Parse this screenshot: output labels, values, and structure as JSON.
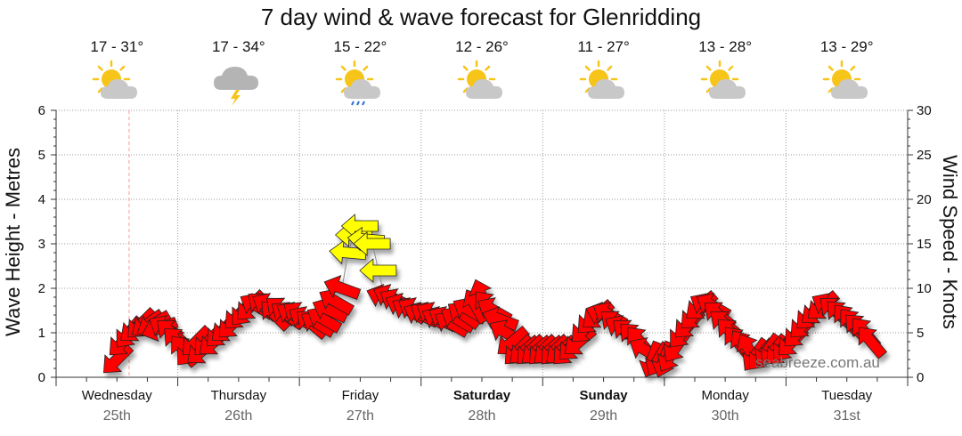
{
  "title": "7 day wind & wave forecast for Glenridding",
  "watermark": "seabreeze.com.au",
  "days": [
    {
      "name": "Wednesday",
      "date": "25th",
      "bold": false,
      "temp": "17 - 31°",
      "icon": "partly-cloudy"
    },
    {
      "name": "Thursday",
      "date": "26th",
      "bold": false,
      "temp": "17 - 34°",
      "icon": "thunderstorm"
    },
    {
      "name": "Friday",
      "date": "27th",
      "bold": false,
      "temp": "15 - 22°",
      "icon": "partly-cloudy-rain"
    },
    {
      "name": "Saturday",
      "date": "28th",
      "bold": true,
      "temp": "12 - 26°",
      "icon": "partly-cloudy"
    },
    {
      "name": "Sunday",
      "date": "29th",
      "bold": true,
      "temp": "11 - 27°",
      "icon": "partly-cloudy"
    },
    {
      "name": "Monday",
      "date": "30th",
      "bold": false,
      "temp": "13 - 28°",
      "icon": "partly-cloudy"
    },
    {
      "name": "Tuesday",
      "date": "31st",
      "bold": false,
      "temp": "13 - 29°",
      "icon": "partly-cloudy"
    }
  ],
  "chart_data": {
    "type": "line",
    "title": "7 day wind & wave forecast for Glenridding",
    "ylabel": "Wave Height - Metres",
    "y2label": "Wind Speed - Knots",
    "ylim": [
      0,
      6
    ],
    "y2lim": [
      0,
      30
    ],
    "yticks": [
      "0",
      "1",
      "2",
      "3",
      "4",
      "5",
      "6"
    ],
    "y2ticks": [
      "0",
      "5",
      "10",
      "15",
      "20",
      "25",
      "30"
    ],
    "grid": true,
    "colors": {
      "strong_wind": "#ff0000",
      "light_wind": "#ffff00",
      "outline": "#222222",
      "now_line": "#ff9999"
    },
    "now_day": 0.6,
    "series": [
      {
        "type": "wind",
        "points": [
          {
            "d": 0.5,
            "kt": 2,
            "dir": 225
          },
          {
            "d": 0.55,
            "kt": 4,
            "dir": 225
          },
          {
            "d": 0.6,
            "kt": 5,
            "dir": 220
          },
          {
            "d": 0.65,
            "kt": 5.5,
            "dir": 230
          },
          {
            "d": 0.7,
            "kt": 6,
            "dir": 225
          },
          {
            "d": 0.75,
            "kt": 6,
            "dir": 235
          },
          {
            "d": 0.8,
            "kt": 6,
            "dir": 240
          },
          {
            "d": 0.85,
            "kt": 5.5,
            "dir": 250
          },
          {
            "d": 0.9,
            "kt": 5.5,
            "dir": 300
          },
          {
            "d": 0.95,
            "kt": 5,
            "dir": 310
          },
          {
            "d": 1.0,
            "kt": 4,
            "dir": 315
          },
          {
            "d": 1.05,
            "kt": 3,
            "dir": 320
          },
          {
            "d": 1.1,
            "kt": 3,
            "dir": 220
          },
          {
            "d": 1.15,
            "kt": 4,
            "dir": 225
          },
          {
            "d": 1.2,
            "kt": 3,
            "dir": 230
          },
          {
            "d": 1.25,
            "kt": 4,
            "dir": 225
          },
          {
            "d": 1.3,
            "kt": 4,
            "dir": 230
          },
          {
            "d": 1.35,
            "kt": 5,
            "dir": 225
          },
          {
            "d": 1.4,
            "kt": 5.5,
            "dir": 230
          },
          {
            "d": 1.45,
            "kt": 6,
            "dir": 225
          },
          {
            "d": 1.5,
            "kt": 7,
            "dir": 225
          },
          {
            "d": 1.55,
            "kt": 7.5,
            "dir": 220
          },
          {
            "d": 1.6,
            "kt": 8,
            "dir": 225
          },
          {
            "d": 1.65,
            "kt": 8,
            "dir": 300
          },
          {
            "d": 1.7,
            "kt": 8,
            "dir": 310
          },
          {
            "d": 1.75,
            "kt": 8,
            "dir": 300
          },
          {
            "d": 1.8,
            "kt": 7,
            "dir": 315
          },
          {
            "d": 1.85,
            "kt": 7.5,
            "dir": 310
          },
          {
            "d": 1.9,
            "kt": 7,
            "dir": 305
          },
          {
            "d": 1.95,
            "kt": 7,
            "dir": 300
          },
          {
            "d": 2.0,
            "kt": 7,
            "dir": 305
          },
          {
            "d": 2.05,
            "kt": 6.5,
            "dir": 300
          },
          {
            "d": 2.1,
            "kt": 6,
            "dir": 310
          },
          {
            "d": 2.15,
            "kt": 6,
            "dir": 300
          },
          {
            "d": 2.2,
            "kt": 6.5,
            "dir": 300
          },
          {
            "d": 2.25,
            "kt": 7.5,
            "dir": 295
          },
          {
            "d": 2.3,
            "kt": 8.5,
            "dir": 300
          },
          {
            "d": 2.35,
            "kt": 10,
            "dir": 290
          },
          {
            "d": 2.4,
            "kt": 14,
            "dir": 275
          },
          {
            "d": 2.45,
            "kt": 16,
            "dir": 270
          },
          {
            "d": 2.5,
            "kt": 17,
            "dir": 270
          },
          {
            "d": 2.55,
            "kt": 15.5,
            "dir": 275
          },
          {
            "d": 2.6,
            "kt": 15,
            "dir": 270
          },
          {
            "d": 2.65,
            "kt": 12,
            "dir": 270
          },
          {
            "d": 2.7,
            "kt": 9,
            "dir": 290
          },
          {
            "d": 2.75,
            "kt": 9,
            "dir": 295
          },
          {
            "d": 2.8,
            "kt": 8.5,
            "dir": 300
          },
          {
            "d": 2.85,
            "kt": 8,
            "dir": 295
          },
          {
            "d": 2.9,
            "kt": 7.5,
            "dir": 300
          },
          {
            "d": 2.95,
            "kt": 7.5,
            "dir": 300
          },
          {
            "d": 3.0,
            "kt": 7,
            "dir": 295
          },
          {
            "d": 3.05,
            "kt": 7,
            "dir": 300
          },
          {
            "d": 3.1,
            "kt": 7,
            "dir": 300
          },
          {
            "d": 3.15,
            "kt": 6.5,
            "dir": 295
          },
          {
            "d": 3.2,
            "kt": 6.5,
            "dir": 300
          },
          {
            "d": 3.25,
            "kt": 6,
            "dir": 300
          },
          {
            "d": 3.3,
            "kt": 6.5,
            "dir": 300
          },
          {
            "d": 3.35,
            "kt": 7,
            "dir": 305
          },
          {
            "d": 3.4,
            "kt": 7.5,
            "dir": 300
          },
          {
            "d": 3.45,
            "kt": 8,
            "dir": 330
          },
          {
            "d": 3.5,
            "kt": 9,
            "dir": 340
          },
          {
            "d": 3.55,
            "kt": 8,
            "dir": 320
          },
          {
            "d": 3.6,
            "kt": 7.5,
            "dir": 300
          },
          {
            "d": 3.65,
            "kt": 6.5,
            "dir": 290
          },
          {
            "d": 3.7,
            "kt": 5,
            "dir": 300
          },
          {
            "d": 3.75,
            "kt": 4,
            "dir": 230
          },
          {
            "d": 3.8,
            "kt": 3,
            "dir": 225
          },
          {
            "d": 3.85,
            "kt": 3,
            "dir": 230
          },
          {
            "d": 3.9,
            "kt": 3,
            "dir": 225
          },
          {
            "d": 3.95,
            "kt": 3,
            "dir": 230
          },
          {
            "d": 4.0,
            "kt": 3,
            "dir": 225
          },
          {
            "d": 4.05,
            "kt": 3,
            "dir": 230
          },
          {
            "d": 4.1,
            "kt": 3,
            "dir": 225
          },
          {
            "d": 4.15,
            "kt": 3,
            "dir": 230
          },
          {
            "d": 4.2,
            "kt": 3,
            "dir": 225
          },
          {
            "d": 4.25,
            "kt": 3.5,
            "dir": 225
          },
          {
            "d": 4.3,
            "kt": 4,
            "dir": 230
          },
          {
            "d": 4.35,
            "kt": 5.5,
            "dir": 225
          },
          {
            "d": 4.4,
            "kt": 6.5,
            "dir": 225
          },
          {
            "d": 4.45,
            "kt": 7,
            "dir": 230
          },
          {
            "d": 4.5,
            "kt": 7,
            "dir": 290
          },
          {
            "d": 4.55,
            "kt": 7,
            "dir": 300
          },
          {
            "d": 4.6,
            "kt": 6,
            "dir": 310
          },
          {
            "d": 4.65,
            "kt": 5.5,
            "dir": 300
          },
          {
            "d": 4.7,
            "kt": 5,
            "dir": 310
          },
          {
            "d": 4.75,
            "kt": 4.5,
            "dir": 315
          },
          {
            "d": 4.8,
            "kt": 4,
            "dir": 320
          },
          {
            "d": 4.85,
            "kt": 3,
            "dir": 300
          },
          {
            "d": 4.9,
            "kt": 2,
            "dir": 200
          },
          {
            "d": 4.95,
            "kt": 2,
            "dir": 210
          },
          {
            "d": 5.0,
            "kt": 2,
            "dir": 200
          },
          {
            "d": 5.05,
            "kt": 2.5,
            "dir": 210
          },
          {
            "d": 5.1,
            "kt": 3.5,
            "dir": 215
          },
          {
            "d": 5.15,
            "kt": 5,
            "dir": 220
          },
          {
            "d": 5.2,
            "kt": 6,
            "dir": 225
          },
          {
            "d": 5.25,
            "kt": 7,
            "dir": 225
          },
          {
            "d": 5.3,
            "kt": 8,
            "dir": 230
          },
          {
            "d": 5.35,
            "kt": 8,
            "dir": 300
          },
          {
            "d": 5.4,
            "kt": 8,
            "dir": 300
          },
          {
            "d": 5.45,
            "kt": 7,
            "dir": 310
          },
          {
            "d": 5.5,
            "kt": 6,
            "dir": 310
          },
          {
            "d": 5.55,
            "kt": 5,
            "dir": 315
          },
          {
            "d": 5.6,
            "kt": 4,
            "dir": 320
          },
          {
            "d": 5.65,
            "kt": 3.5,
            "dir": 325
          },
          {
            "d": 5.7,
            "kt": 3,
            "dir": 330
          },
          {
            "d": 5.75,
            "kt": 2.5,
            "dir": 215
          },
          {
            "d": 5.8,
            "kt": 2.5,
            "dir": 220
          },
          {
            "d": 5.85,
            "kt": 3,
            "dir": 215
          },
          {
            "d": 5.9,
            "kt": 3,
            "dir": 220
          },
          {
            "d": 5.95,
            "kt": 3,
            "dir": 225
          },
          {
            "d": 6.0,
            "kt": 3.5,
            "dir": 220
          },
          {
            "d": 6.05,
            "kt": 4,
            "dir": 225
          },
          {
            "d": 6.1,
            "kt": 5,
            "dir": 225
          },
          {
            "d": 6.15,
            "kt": 6,
            "dir": 225
          },
          {
            "d": 6.2,
            "kt": 7,
            "dir": 225
          },
          {
            "d": 6.25,
            "kt": 7.5,
            "dir": 230
          },
          {
            "d": 6.3,
            "kt": 8,
            "dir": 230
          },
          {
            "d": 6.35,
            "kt": 8,
            "dir": 300
          },
          {
            "d": 6.4,
            "kt": 7.5,
            "dir": 310
          },
          {
            "d": 6.45,
            "kt": 7,
            "dir": 315
          },
          {
            "d": 6.5,
            "kt": 6.5,
            "dir": 320
          },
          {
            "d": 6.55,
            "kt": 6,
            "dir": 320
          },
          {
            "d": 6.6,
            "kt": 5.5,
            "dir": 315
          },
          {
            "d": 6.65,
            "kt": 5,
            "dir": 320
          },
          {
            "d": 6.7,
            "kt": 4,
            "dir": 320
          }
        ]
      }
    ]
  }
}
